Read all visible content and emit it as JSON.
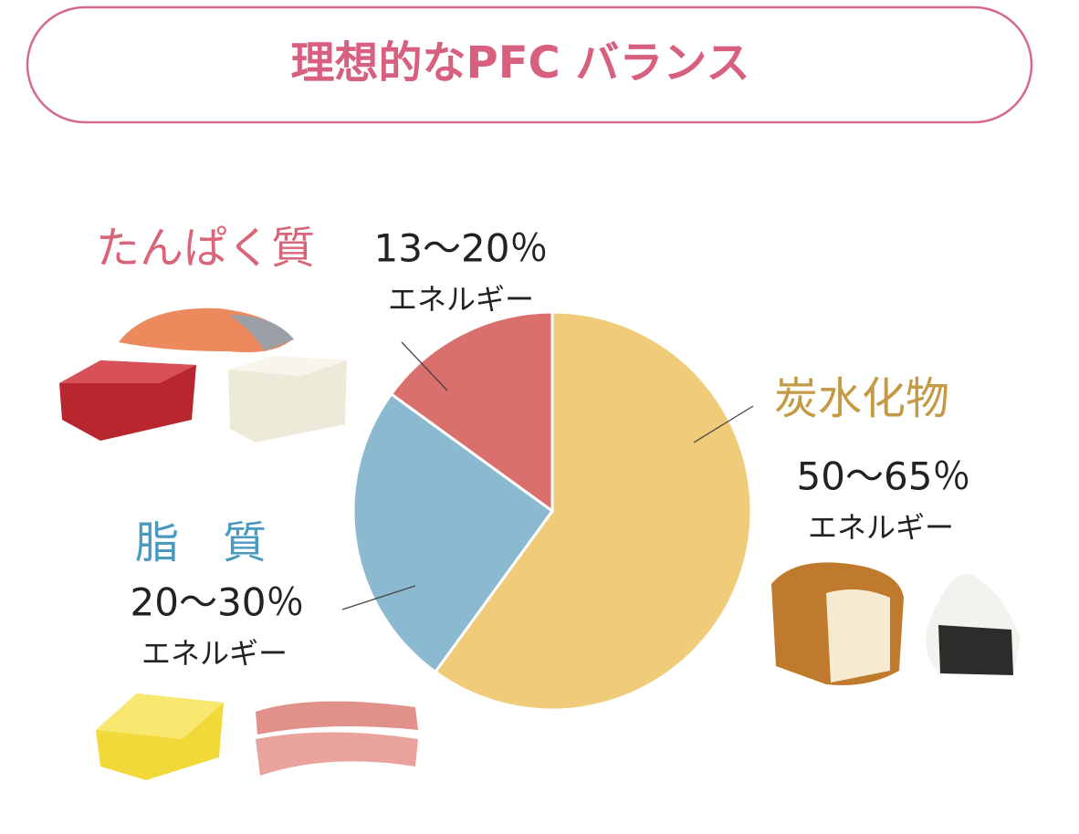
{
  "chart_data": {
    "type": "pie",
    "title": "理想的なPFC バランス",
    "categories": [
      "炭水化物",
      "脂　質",
      "たんぱく質"
    ],
    "values": [
      60,
      25,
      15
    ],
    "colors": [
      "#f0cc7a",
      "#8ab9d0",
      "#d9706e"
    ],
    "range_labels": [
      "50～65％",
      "20～30％",
      "13～20％"
    ],
    "unit_labels": [
      "エネルギー",
      "エネルギー",
      "エネルギー"
    ]
  }
}
